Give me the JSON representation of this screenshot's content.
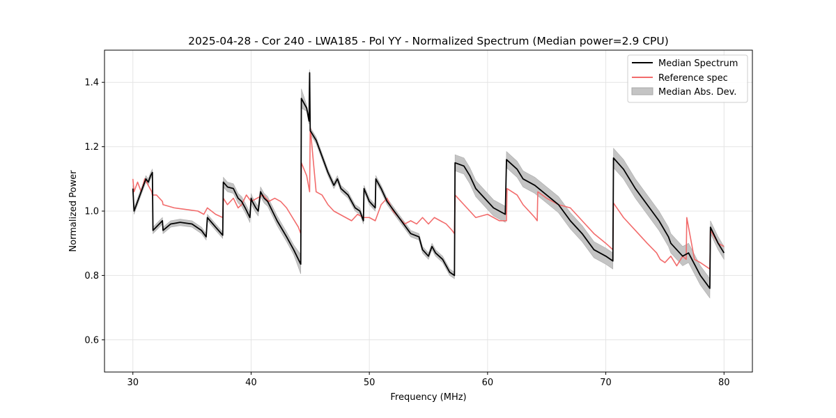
{
  "chart_data": {
    "type": "line",
    "title": "2025-04-28 - Cor 240 - LWA185 - Pol YY - Normalized Spectrum (Median power=2.9 CPU)",
    "xlabel": "Frequency (MHz)",
    "ylabel": "Normalized Power",
    "xlim": [
      27.6,
      82.4
    ],
    "ylim": [
      0.5,
      1.5
    ],
    "xticks": [
      30,
      40,
      50,
      60,
      70,
      80
    ],
    "yticks": [
      0.6,
      0.8,
      1.0,
      1.2,
      1.4
    ],
    "xtick_labels": [
      "30",
      "40",
      "50",
      "60",
      "70",
      "80"
    ],
    "ytick_labels": [
      "0.6",
      "0.8",
      "1.0",
      "1.2",
      "1.4"
    ],
    "grid": true,
    "legend_position": "top-right",
    "legend": [
      "Median Spectrum",
      "Reference spec",
      "Median Abs. Dev."
    ],
    "series": [
      {
        "name": "Median Spectrum",
        "color": "#000000",
        "x": [
          30.0,
          30.1,
          30.5,
          30.9,
          31.1,
          31.3,
          31.5,
          31.65,
          31.7,
          32.5,
          32.55,
          33.2,
          34.0,
          35.0,
          35.8,
          36.2,
          36.3,
          37.0,
          37.6,
          37.65,
          38.0,
          38.5,
          38.9,
          39.2,
          39.5,
          39.9,
          40.0,
          40.1,
          40.4,
          40.6,
          40.8,
          41.1,
          41.4,
          41.8,
          42.2,
          43.0,
          43.6,
          44.2,
          44.25,
          44.7,
          44.9,
          44.95,
          45.0,
          45.5,
          46.0,
          46.5,
          47.0,
          47.3,
          47.6,
          48.2,
          48.8,
          49.2,
          49.5,
          49.55,
          50.0,
          50.5,
          50.55,
          51.0,
          51.5,
          52.5,
          53.5,
          54.2,
          54.5,
          55.0,
          55.3,
          55.6,
          56.2,
          56.8,
          57.2,
          57.25,
          58.0,
          58.5,
          59.0,
          60.0,
          60.5,
          61.5,
          61.6,
          62.5,
          63.0,
          64.0,
          65.0,
          66.0,
          67.0,
          68.0,
          69.0,
          70.0,
          70.6,
          70.65,
          71.5,
          72.5,
          73.5,
          74.5,
          75.3,
          75.5,
          76.0,
          76.5,
          77.0,
          78.0,
          78.8,
          78.85,
          79.5,
          80.0
        ],
        "values": [
          1.07,
          1.0,
          1.04,
          1.08,
          1.1,
          1.09,
          1.11,
          1.12,
          0.94,
          0.97,
          0.94,
          0.96,
          0.965,
          0.96,
          0.94,
          0.92,
          0.98,
          0.95,
          0.925,
          1.09,
          1.075,
          1.07,
          1.04,
          1.03,
          1.01,
          0.98,
          1.04,
          1.03,
          1.01,
          1.0,
          1.06,
          1.04,
          1.03,
          1.0,
          0.97,
          0.92,
          0.88,
          0.835,
          1.35,
          1.32,
          1.28,
          1.43,
          1.25,
          1.22,
          1.17,
          1.12,
          1.08,
          1.1,
          1.07,
          1.05,
          1.01,
          1.0,
          0.97,
          1.07,
          1.03,
          1.01,
          1.1,
          1.07,
          1.03,
          0.98,
          0.93,
          0.92,
          0.88,
          0.86,
          0.89,
          0.87,
          0.85,
          0.81,
          0.8,
          1.15,
          1.14,
          1.11,
          1.07,
          1.03,
          1.01,
          0.99,
          1.16,
          1.13,
          1.1,
          1.08,
          1.05,
          1.02,
          0.97,
          0.93,
          0.88,
          0.86,
          0.845,
          1.165,
          1.13,
          1.07,
          1.02,
          0.97,
          0.92,
          0.9,
          0.88,
          0.86,
          0.87,
          0.8,
          0.76,
          0.95,
          0.9,
          0.87
        ]
      },
      {
        "name": "Reference spec",
        "color": "#f26b6b",
        "x": [
          30.0,
          30.1,
          30.4,
          30.7,
          31.0,
          31.3,
          31.6,
          31.65,
          32.0,
          32.5,
          32.55,
          33.5,
          34.5,
          35.5,
          36.0,
          36.3,
          37.0,
          37.6,
          37.65,
          38.0,
          38.5,
          38.9,
          39.2,
          39.6,
          40.0,
          40.5,
          41.0,
          41.5,
          42.0,
          42.5,
          43.0,
          43.5,
          44.0,
          44.2,
          44.25,
          44.7,
          44.95,
          45.0,
          45.5,
          46.0,
          46.5,
          47.0,
          47.5,
          48.0,
          48.5,
          49.0,
          49.5,
          50.0,
          50.5,
          51.0,
          51.5,
          52.0,
          52.5,
          53.0,
          53.5,
          54.0,
          54.5,
          55.0,
          55.5,
          56.0,
          56.5,
          57.0,
          57.2,
          57.25,
          58.0,
          58.5,
          59.0,
          60.0,
          61.0,
          61.6,
          61.65,
          62.5,
          63.0,
          64.0,
          64.2,
          64.25,
          65.0,
          66.0,
          67.0,
          68.0,
          69.0,
          70.0,
          70.6,
          70.65,
          71.5,
          72.5,
          73.5,
          74.3,
          74.6,
          75.0,
          75.5,
          76.0,
          76.5,
          76.8,
          76.85,
          77.5,
          78.0,
          78.8,
          78.85,
          79.5,
          80.0
        ],
        "values": [
          1.1,
          1.06,
          1.09,
          1.06,
          1.1,
          1.08,
          1.06,
          1.05,
          1.05,
          1.03,
          1.02,
          1.01,
          1.005,
          1.0,
          0.99,
          1.01,
          0.99,
          0.98,
          1.04,
          1.02,
          1.04,
          1.01,
          1.02,
          1.05,
          1.03,
          1.04,
          1.05,
          1.03,
          1.04,
          1.03,
          1.01,
          0.98,
          0.95,
          0.93,
          1.15,
          1.11,
          1.06,
          1.26,
          1.06,
          1.05,
          1.02,
          1.0,
          0.99,
          0.98,
          0.97,
          0.99,
          0.98,
          0.98,
          0.97,
          1.02,
          1.04,
          1.0,
          0.98,
          0.96,
          0.97,
          0.96,
          0.98,
          0.96,
          0.98,
          0.97,
          0.96,
          0.94,
          0.93,
          1.05,
          1.02,
          1.0,
          0.98,
          0.99,
          0.97,
          0.97,
          1.07,
          1.05,
          1.02,
          0.98,
          0.97,
          1.06,
          1.04,
          1.02,
          1.01,
          0.97,
          0.93,
          0.9,
          0.88,
          1.025,
          0.98,
          0.94,
          0.9,
          0.87,
          0.85,
          0.84,
          0.86,
          0.83,
          0.86,
          0.85,
          0.98,
          0.85,
          0.84,
          0.82,
          0.94,
          0.9,
          0.89
        ]
      }
    ],
    "band": {
      "name": "Median Abs. Dev.",
      "color": "#c4c4c4",
      "series": "Median Spectrum",
      "x_ranges": [
        [
          44.25,
          44.2
        ],
        [
          57.25,
          70.6
        ],
        [
          70.65,
          78.8
        ],
        [
          78.85,
          80.0
        ],
        [
          37.65,
          44.2
        ]
      ],
      "half_width_by_range": [
        0.03,
        0.025,
        0.03,
        0.02,
        0.015
      ],
      "default_half_width": 0.01
    }
  }
}
